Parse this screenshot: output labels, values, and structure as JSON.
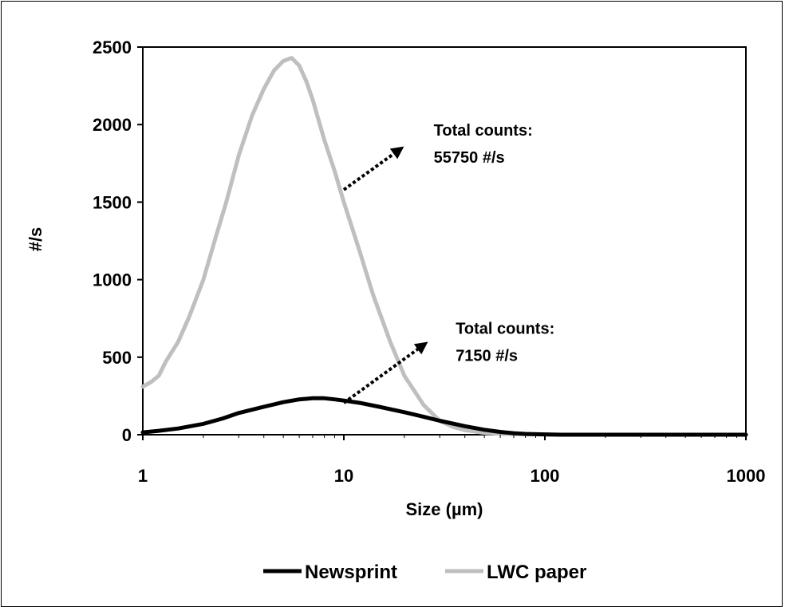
{
  "chart_data": {
    "type": "line",
    "xlabel": "Size (µm)",
    "ylabel": "#/s",
    "xscale": "log",
    "xlim": [
      1,
      1000
    ],
    "ylim": [
      0,
      2500
    ],
    "xticks": [
      "1",
      "10",
      "100",
      "1000"
    ],
    "yticks": [
      "0",
      "500",
      "1000",
      "1500",
      "2000",
      "2500"
    ],
    "grid": false,
    "legend_position": "bottom",
    "series": [
      {
        "name": "Newsprint",
        "color": "#000000",
        "x": [
          1,
          1.2,
          1.5,
          2,
          2.5,
          3,
          4,
          5,
          6,
          7,
          8,
          9,
          10,
          12,
          15,
          20,
          25,
          30,
          40,
          50,
          60,
          70,
          80,
          100,
          120,
          150,
          200,
          300,
          500,
          1000
        ],
        "y": [
          15,
          25,
          40,
          70,
          105,
          140,
          180,
          210,
          228,
          235,
          235,
          228,
          220,
          205,
          180,
          145,
          115,
          90,
          55,
          32,
          18,
          10,
          5,
          2,
          0,
          0,
          0,
          0,
          0,
          0
        ]
      },
      {
        "name": "LWC paper",
        "color": "#bfbfbf",
        "x": [
          1,
          1.1,
          1.2,
          1.3,
          1.5,
          1.7,
          2,
          2.3,
          2.6,
          3,
          3.5,
          4,
          4.5,
          5,
          5.5,
          6,
          6.5,
          7,
          8,
          9,
          10,
          12,
          14,
          17,
          20,
          25,
          30,
          35,
          40,
          50,
          60,
          80,
          100,
          120,
          150,
          200,
          300,
          500,
          1000
        ],
        "y": [
          310,
          340,
          380,
          470,
          600,
          760,
          1000,
          1270,
          1500,
          1800,
          2060,
          2230,
          2350,
          2410,
          2430,
          2380,
          2280,
          2160,
          1900,
          1700,
          1500,
          1180,
          900,
          600,
          380,
          190,
          90,
          50,
          30,
          12,
          6,
          3,
          1,
          0,
          0,
          0,
          0,
          0,
          0
        ]
      }
    ],
    "annotations": [
      {
        "id": "lwc",
        "lines": [
          "Total counts:",
          "55750 #/s"
        ],
        "arrow_from": [
          10,
          1580
        ],
        "arrow_to": [
          19,
          1840
        ],
        "text_at": [
          28,
          1930
        ]
      },
      {
        "id": "news",
        "lines": [
          "Total counts:",
          "7150 #/s"
        ],
        "arrow_from": [
          10,
          205
        ],
        "arrow_to": [
          25,
          580
        ],
        "text_at": [
          36,
          650
        ]
      }
    ]
  }
}
